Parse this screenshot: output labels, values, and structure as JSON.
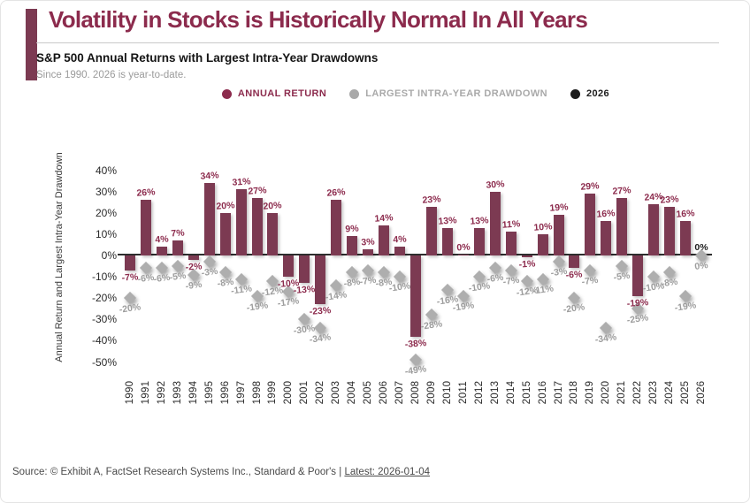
{
  "header": {
    "title": "Volatility in Stocks is Historically Normal In All Years",
    "subtitle": "S&P 500 Annual Returns with Largest Intra-Year Drawdowns",
    "note": "Since 1990. 2026 is year-to-date."
  },
  "legend": {
    "items": [
      {
        "label": "ANNUAL RETURN",
        "color": "#8c2b4d"
      },
      {
        "label": "LARGEST INTRA-YEAR DRAWDOWN",
        "color": "#a9a9a9"
      },
      {
        "label": "2026",
        "color": "#1d1d1d"
      }
    ]
  },
  "chart_data": {
    "type": "bar",
    "title": "S&P 500 Annual Returns with Largest Intra-Year Drawdowns",
    "xlabel": "",
    "ylabel": "Annual Return and Largest Intra-Year Drawdown",
    "ylim": [
      -50,
      40
    ],
    "y_ticks": [
      40,
      30,
      20,
      10,
      0,
      -10,
      -20,
      -30,
      -40,
      -50
    ],
    "grid": false,
    "legend_position": "top",
    "categories": [
      "1990",
      "1991",
      "1992",
      "1993",
      "1994",
      "1995",
      "1996",
      "1997",
      "1998",
      "1999",
      "2000",
      "2001",
      "2002",
      "2003",
      "2004",
      "2005",
      "2006",
      "2007",
      "2008",
      "2009",
      "2010",
      "2011",
      "2012",
      "2013",
      "2014",
      "2015",
      "2016",
      "2017",
      "2018",
      "2019",
      "2020",
      "2021",
      "2022",
      "2023",
      "2024",
      "2025",
      "2026"
    ],
    "series": [
      {
        "name": "ANNUAL RETURN",
        "color": "#7c3a52",
        "values": [
          -7,
          26,
          4,
          7,
          -2,
          34,
          20,
          31,
          27,
          20,
          -10,
          -13,
          -23,
          26,
          9,
          3,
          14,
          4,
          -38,
          23,
          13,
          0,
          13,
          30,
          11,
          -1,
          10,
          19,
          -6,
          29,
          16,
          27,
          -19,
          24,
          23,
          16,
          0
        ]
      },
      {
        "name": "LARGEST INTRA-YEAR DRAWDOWN",
        "color": "#aeaeae",
        "values": [
          -20,
          -6,
          -6,
          -5,
          -9,
          -3,
          -8,
          -11,
          -19,
          -12,
          -17,
          -30,
          -34,
          -14,
          -8,
          -7,
          -8,
          -10,
          -49,
          -28,
          -16,
          -19,
          -10,
          -6,
          -7,
          -12,
          -11,
          -3,
          -20,
          -7,
          -34,
          -5,
          -25,
          -10,
          -8,
          -19,
          0
        ]
      }
    ],
    "highlight": {
      "category": "2026",
      "color": "#1d1d1d"
    }
  },
  "footer": {
    "source": "Source: © Exhibit A, FactSet Research Systems Inc., Standard & Poor's | ",
    "latest": "Latest: 2026-01-04"
  },
  "colors": {
    "accent": "#8c2b4d",
    "bar": "#7c3a52",
    "drawdown_gray": "#aeaeae",
    "highlight_black": "#1d1d1d"
  }
}
